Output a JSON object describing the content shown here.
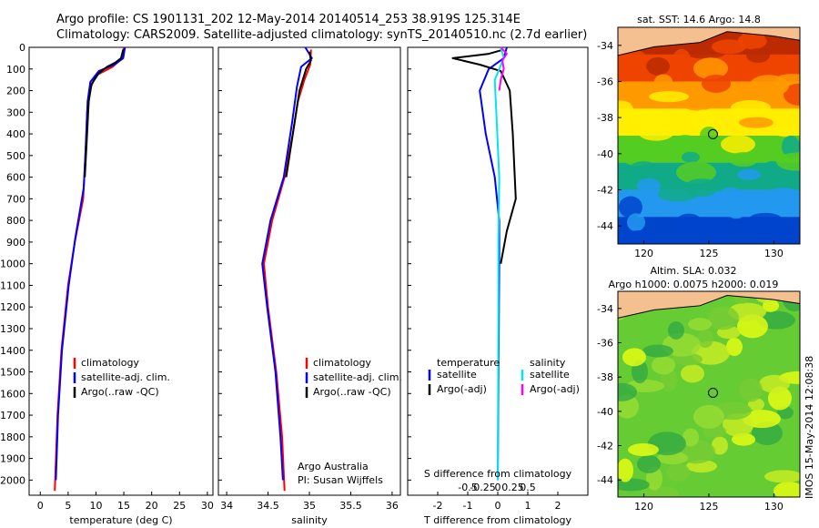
{
  "header": {
    "line1": "Argo profile: CS 1901131_202 12-May-2014 20140514_253 38.919S 125.314E",
    "line2": "Climatology: CARS2009. Satellite-adjusted climatology: synTS_20140510.nc (2.7d earlier)"
  },
  "colors": {
    "climatology": "#ff0000",
    "satellite": "#0000ff",
    "argo": "#000000",
    "sat_salinity": "#00e5ee",
    "argo_salinity": "#ff00ff"
  },
  "chart_data": [
    {
      "type": "line",
      "name": "temperature-profile",
      "xlabel": "temperature (deg C)",
      "ylabel": "",
      "xlim": [
        -2,
        31
      ],
      "ylim": [
        2070,
        0
      ],
      "xticks": [
        0,
        5,
        10,
        15,
        20,
        25,
        30
      ],
      "yticks": [
        0,
        100,
        200,
        300,
        400,
        500,
        600,
        700,
        800,
        900,
        1000,
        1100,
        1200,
        1300,
        1400,
        1500,
        1600,
        1700,
        1800,
        1900,
        2000
      ],
      "legend": [
        "climatology",
        "satellite-adj. clim.",
        "Argo(..raw -QC)"
      ],
      "series": [
        {
          "name": "climatology",
          "color_key": "climatology",
          "points": [
            [
              15,
              0
            ],
            [
              14.7,
              50
            ],
            [
              13,
              90
            ],
            [
              10,
              130
            ],
            [
              8.8,
              200
            ],
            [
              8.4,
              300
            ],
            [
              8.1,
              500
            ],
            [
              7.7,
              700
            ],
            [
              6.2,
              900
            ],
            [
              5,
              1100
            ],
            [
              3.8,
              1400
            ],
            [
              3.1,
              1700
            ],
            [
              2.6,
              2050
            ]
          ]
        },
        {
          "name": "satellite-adj. clim.",
          "color_key": "satellite",
          "points": [
            [
              15.2,
              0
            ],
            [
              14.9,
              50
            ],
            [
              13.3,
              80
            ],
            [
              10.5,
              110
            ],
            [
              9,
              160
            ],
            [
              8.5,
              250
            ],
            [
              8.2,
              450
            ],
            [
              7.8,
              650
            ],
            [
              6.3,
              880
            ],
            [
              5.1,
              1100
            ],
            [
              3.9,
              1400
            ],
            [
              3.2,
              1700
            ],
            [
              2.8,
              2000
            ]
          ]
        },
        {
          "name": "Argo(..raw -QC)",
          "color_key": "argo",
          "points": [
            [
              14.9,
              10
            ],
            [
              14.5,
              50
            ],
            [
              13.5,
              70
            ],
            [
              12,
              90
            ],
            [
              10.5,
              120
            ],
            [
              9.2,
              170
            ],
            [
              8.7,
              250
            ],
            [
              8.4,
              400
            ],
            [
              8,
              600
            ]
          ]
        }
      ]
    },
    {
      "type": "line",
      "name": "salinity-profile",
      "xlabel": "salinity",
      "xlim": [
        33.9,
        36.1
      ],
      "ylim": [
        2070,
        0
      ],
      "xticks": [
        34,
        34.5,
        35,
        35.5,
        36
      ],
      "legend": [
        "climatology",
        "satellite-adj. clim.",
        "Argo(..raw -QC)"
      ],
      "annotation": [
        "Argo Australia",
        "PI: Susan Wijffels"
      ],
      "series": [
        {
          "name": "climatology",
          "color_key": "climatology",
          "points": [
            [
              35.02,
              10
            ],
            [
              35.01,
              80
            ],
            [
              34.94,
              150
            ],
            [
              34.86,
              250
            ],
            [
              34.8,
              400
            ],
            [
              34.7,
              600
            ],
            [
              34.55,
              800
            ],
            [
              34.45,
              1000
            ],
            [
              34.5,
              1200
            ],
            [
              34.6,
              1500
            ],
            [
              34.67,
              1800
            ],
            [
              34.7,
              2050
            ]
          ]
        },
        {
          "name": "satellite-adj. clim.",
          "color_key": "satellite",
          "points": [
            [
              34.95,
              0
            ],
            [
              35.03,
              50
            ],
            [
              34.9,
              90
            ],
            [
              34.85,
              180
            ],
            [
              34.79,
              350
            ],
            [
              34.69,
              600
            ],
            [
              34.53,
              800
            ],
            [
              34.43,
              1000
            ],
            [
              34.49,
              1200
            ],
            [
              34.59,
              1500
            ],
            [
              34.65,
              1800
            ],
            [
              34.68,
              2000
            ]
          ]
        },
        {
          "name": "Argo(..raw -QC)",
          "color_key": "argo",
          "points": [
            [
              35.0,
              20
            ],
            [
              35.02,
              60
            ],
            [
              34.96,
              100
            ],
            [
              34.88,
              200
            ],
            [
              34.8,
              400
            ],
            [
              34.72,
              600
            ]
          ]
        }
      ]
    },
    {
      "type": "line",
      "name": "difference-profile",
      "xlabel": "T difference from climatology",
      "xlabel_top": "S difference from climatology",
      "xlim": [
        -3,
        3
      ],
      "ylim": [
        2070,
        0
      ],
      "xticks": [
        -2,
        -1,
        0,
        1,
        2
      ],
      "xtick_labels": [
        "-2",
        "-1",
        "0",
        "1",
        "2"
      ],
      "sticks": [
        -0.5,
        -0.25,
        0,
        0.25,
        0.5
      ],
      "stick_labels": [
        "-0.5",
        "-0.25",
        "0",
        "0.25",
        "0.5"
      ],
      "legend_title_t": "temperature",
      "legend_title_s": "salinity",
      "legend_t": [
        "satellite",
        "Argo(-adj)"
      ],
      "legend_s": [
        "satellite",
        "Argo(-adj)"
      ],
      "series": [
        {
          "name": "T satellite",
          "color_key": "satellite",
          "points": [
            [
              0.3,
              0
            ],
            [
              0.2,
              50
            ],
            [
              -0.3,
              100
            ],
            [
              -0.6,
              200
            ],
            [
              -0.4,
              400
            ],
            [
              -0.1,
              600
            ],
            [
              0.05,
              800
            ],
            [
              0.05,
              1000
            ],
            [
              0,
              2000
            ]
          ]
        },
        {
          "name": "T Argo(-adj)",
          "color_key": "argo",
          "points": [
            [
              0.2,
              10
            ],
            [
              -0.3,
              30
            ],
            [
              -1.5,
              50
            ],
            [
              -0.6,
              80
            ],
            [
              0.1,
              110
            ],
            [
              0.4,
              200
            ],
            [
              0.5,
              400
            ],
            [
              0.6,
              700
            ],
            [
              0.3,
              850
            ],
            [
              0.1,
              1000
            ]
          ]
        },
        {
          "name": "S satellite",
          "color_key": "sat_salinity",
          "points": [
            [
              0.1,
              0
            ],
            [
              0.2,
              50
            ],
            [
              -0.1,
              150
            ],
            [
              -0.05,
              300
            ],
            [
              0.05,
              600
            ],
            [
              0.02,
              900
            ],
            [
              0.02,
              1200
            ],
            [
              0,
              2000
            ]
          ]
        },
        {
          "name": "S Argo(-adj)",
          "color_key": "argo_salinity",
          "points": [
            [
              0.1,
              0
            ],
            [
              0.3,
              30
            ],
            [
              0.15,
              60
            ],
            [
              0.2,
              100
            ],
            [
              0.1,
              150
            ],
            [
              0.05,
              200
            ]
          ]
        }
      ]
    }
  ],
  "maps": {
    "sst_title": "sat. SST: 14.6 Argo: 14.8",
    "sla_title1": "Altim. SLA: 0.032",
    "sla_title2": "Argo h1000: 0.0075 h2000: 0.019",
    "lat_ticks": [
      "-34",
      "-36",
      "-38",
      "-40",
      "-42",
      "-44"
    ],
    "lon_ticks": [
      "120",
      "125",
      "130"
    ],
    "float_lat": -38.919,
    "float_lon": 125.314,
    "lat_range": [
      -45,
      -33
    ],
    "lon_range": [
      118,
      132
    ],
    "sst_bands": [
      {
        "color": "#bb2a00"
      },
      {
        "color": "#ee4400"
      },
      {
        "color": "#ff9900"
      },
      {
        "color": "#ffee00"
      },
      {
        "color": "#55cc22"
      },
      {
        "color": "#11aa88"
      },
      {
        "color": "#2299ee"
      },
      {
        "color": "#0044cc"
      }
    ],
    "sla_base": "#66cc33",
    "land_color": "#f5c090"
  },
  "footer": "IMOS 15-May-2014 12:08:38"
}
